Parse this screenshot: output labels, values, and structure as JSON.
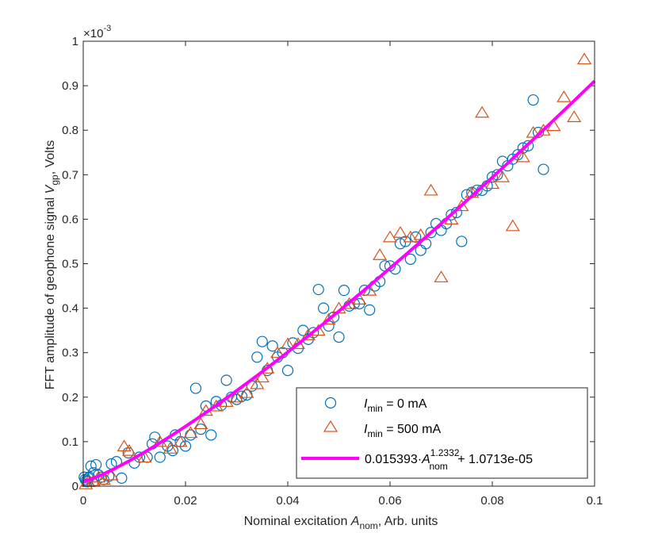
{
  "chart_data": {
    "type": "scatter",
    "title": "",
    "xlabel": {
      "pre": "Nominal excitation ",
      "var": "A",
      "sub": "nom",
      "post": ", Arb. units"
    },
    "ylabel": {
      "pre": "FFT amplitude of geophone signal ",
      "var": "V",
      "sub": "gp",
      "post": ", Volts"
    },
    "y_exponent_label": {
      "base": "×10",
      "exp": "-3"
    },
    "xlim": [
      0,
      0.1
    ],
    "ylim": [
      0,
      1
    ],
    "xticks": [
      "0",
      "0.02",
      "0.04",
      "0.06",
      "0.08",
      "0.1"
    ],
    "xtick_values": [
      0,
      0.02,
      0.04,
      0.06,
      0.08,
      0.1
    ],
    "yticks": [
      "0",
      "0.1",
      "0.2",
      "0.3",
      "0.4",
      "0.5",
      "0.6",
      "0.7",
      "0.8",
      "0.9",
      "1"
    ],
    "ytick_values": [
      0,
      0.1,
      0.2,
      0.3,
      0.4,
      0.5,
      0.6,
      0.7,
      0.8,
      0.9,
      1
    ],
    "grid": false,
    "legend_position": "bottom-right",
    "colors": {
      "circle": "#0072BD",
      "triangle": "#D95319",
      "fit": "#FF00FF",
      "axes": "#262626"
    },
    "series": [
      {
        "name": "0 mA",
        "legend": {
          "var": "I",
          "sub": "min",
          "post": " = 0 mA"
        },
        "marker": "circle",
        "points": [
          [
            0.0002,
            0.02
          ],
          [
            0.0004,
            0.015
          ],
          [
            0.0006,
            0.012
          ],
          [
            0.0008,
            0.01
          ],
          [
            0.001,
            0.018
          ],
          [
            0.0012,
            0.02
          ],
          [
            0.0015,
            0.045
          ],
          [
            0.002,
            0.03
          ],
          [
            0.0025,
            0.048
          ],
          [
            0.003,
            0.025
          ],
          [
            0.0035,
            0.02
          ],
          [
            0.004,
            0.015
          ],
          [
            0.005,
            0.022
          ],
          [
            0.0055,
            0.05
          ],
          [
            0.0065,
            0.055
          ],
          [
            0.0075,
            0.018
          ],
          [
            0.0088,
            0.075
          ],
          [
            0.01,
            0.052
          ],
          [
            0.011,
            0.065
          ],
          [
            0.0125,
            0.065
          ],
          [
            0.0135,
            0.095
          ],
          [
            0.014,
            0.11
          ],
          [
            0.015,
            0.065
          ],
          [
            0.0165,
            0.09
          ],
          [
            0.0175,
            0.08
          ],
          [
            0.018,
            0.115
          ],
          [
            0.019,
            0.1
          ],
          [
            0.02,
            0.09
          ],
          [
            0.021,
            0.115
          ],
          [
            0.022,
            0.22
          ],
          [
            0.023,
            0.128
          ],
          [
            0.024,
            0.18
          ],
          [
            0.025,
            0.115
          ],
          [
            0.026,
            0.19
          ],
          [
            0.027,
            0.182
          ],
          [
            0.028,
            0.238
          ],
          [
            0.029,
            0.2
          ],
          [
            0.03,
            0.195
          ],
          [
            0.031,
            0.202
          ],
          [
            0.032,
            0.205
          ],
          [
            0.033,
            0.225
          ],
          [
            0.034,
            0.29
          ],
          [
            0.035,
            0.325
          ],
          [
            0.036,
            0.26
          ],
          [
            0.037,
            0.315
          ],
          [
            0.038,
            0.29
          ],
          [
            0.039,
            0.3
          ],
          [
            0.04,
            0.26
          ],
          [
            0.041,
            0.322
          ],
          [
            0.042,
            0.31
          ],
          [
            0.043,
            0.35
          ],
          [
            0.044,
            0.33
          ],
          [
            0.045,
            0.345
          ],
          [
            0.046,
            0.442
          ],
          [
            0.047,
            0.4
          ],
          [
            0.048,
            0.36
          ],
          [
            0.049,
            0.38
          ],
          [
            0.05,
            0.335
          ],
          [
            0.051,
            0.44
          ],
          [
            0.052,
            0.405
          ],
          [
            0.053,
            0.41
          ],
          [
            0.054,
            0.41
          ],
          [
            0.055,
            0.44
          ],
          [
            0.056,
            0.396
          ],
          [
            0.057,
            0.45
          ],
          [
            0.058,
            0.46
          ],
          [
            0.059,
            0.495
          ],
          [
            0.06,
            0.495
          ],
          [
            0.061,
            0.488
          ],
          [
            0.062,
            0.545
          ],
          [
            0.063,
            0.55
          ],
          [
            0.064,
            0.51
          ],
          [
            0.065,
            0.56
          ],
          [
            0.066,
            0.53
          ],
          [
            0.067,
            0.545
          ],
          [
            0.068,
            0.57
          ],
          [
            0.069,
            0.59
          ],
          [
            0.07,
            0.575
          ],
          [
            0.071,
            0.59
          ],
          [
            0.072,
            0.61
          ],
          [
            0.073,
            0.615
          ],
          [
            0.074,
            0.55
          ],
          [
            0.075,
            0.655
          ],
          [
            0.076,
            0.66
          ],
          [
            0.077,
            0.665
          ],
          [
            0.078,
            0.665
          ],
          [
            0.079,
            0.675
          ],
          [
            0.08,
            0.695
          ],
          [
            0.081,
            0.7
          ],
          [
            0.082,
            0.73
          ],
          [
            0.083,
            0.72
          ],
          [
            0.084,
            0.735
          ],
          [
            0.085,
            0.745
          ],
          [
            0.086,
            0.76
          ],
          [
            0.087,
            0.765
          ],
          [
            0.088,
            0.868
          ],
          [
            0.089,
            0.795
          ],
          [
            0.09,
            0.712
          ]
        ]
      },
      {
        "name": "500 mA",
        "legend": {
          "var": "I",
          "sub": "min",
          "post": " = 500 mA"
        },
        "marker": "triangle",
        "points": [
          [
            0.0005,
            0.005
          ],
          [
            0.001,
            0.01
          ],
          [
            0.002,
            0.012
          ],
          [
            0.003,
            0.02
          ],
          [
            0.004,
            0.015
          ],
          [
            0.0055,
            0.025
          ],
          [
            0.008,
            0.09
          ],
          [
            0.009,
            0.08
          ],
          [
            0.012,
            0.065
          ],
          [
            0.015,
            0.1
          ],
          [
            0.017,
            0.085
          ],
          [
            0.019,
            0.1
          ],
          [
            0.021,
            0.12
          ],
          [
            0.023,
            0.14
          ],
          [
            0.024,
            0.17
          ],
          [
            0.026,
            0.18
          ],
          [
            0.028,
            0.19
          ],
          [
            0.03,
            0.2
          ],
          [
            0.032,
            0.21
          ],
          [
            0.034,
            0.23
          ],
          [
            0.035,
            0.245
          ],
          [
            0.036,
            0.265
          ],
          [
            0.038,
            0.3
          ],
          [
            0.04,
            0.32
          ],
          [
            0.042,
            0.32
          ],
          [
            0.044,
            0.34
          ],
          [
            0.046,
            0.35
          ],
          [
            0.048,
            0.375
          ],
          [
            0.05,
            0.4
          ],
          [
            0.052,
            0.41
          ],
          [
            0.054,
            0.42
          ],
          [
            0.056,
            0.44
          ],
          [
            0.058,
            0.52
          ],
          [
            0.06,
            0.56
          ],
          [
            0.062,
            0.57
          ],
          [
            0.064,
            0.56
          ],
          [
            0.066,
            0.565
          ],
          [
            0.068,
            0.665
          ],
          [
            0.07,
            0.47
          ],
          [
            0.072,
            0.6
          ],
          [
            0.074,
            0.63
          ],
          [
            0.076,
            0.66
          ],
          [
            0.078,
            0.84
          ],
          [
            0.08,
            0.68
          ],
          [
            0.082,
            0.695
          ],
          [
            0.084,
            0.585
          ],
          [
            0.086,
            0.74
          ],
          [
            0.088,
            0.795
          ],
          [
            0.09,
            0.8
          ],
          [
            0.092,
            0.81
          ],
          [
            0.094,
            0.875
          ],
          [
            0.096,
            0.83
          ],
          [
            0.098,
            0.96
          ]
        ]
      },
      {
        "name": "fit",
        "marker": "line",
        "coefficient": 0.015393,
        "exponent": 1.2332,
        "offset": 1.07134e-05,
        "y_scale": 1000,
        "legend": {
          "coef": "0.015393·",
          "var": "A",
          "sup": "1.2332",
          "sub": "nom",
          "post": " + 1.0713e-05"
        }
      }
    ]
  }
}
